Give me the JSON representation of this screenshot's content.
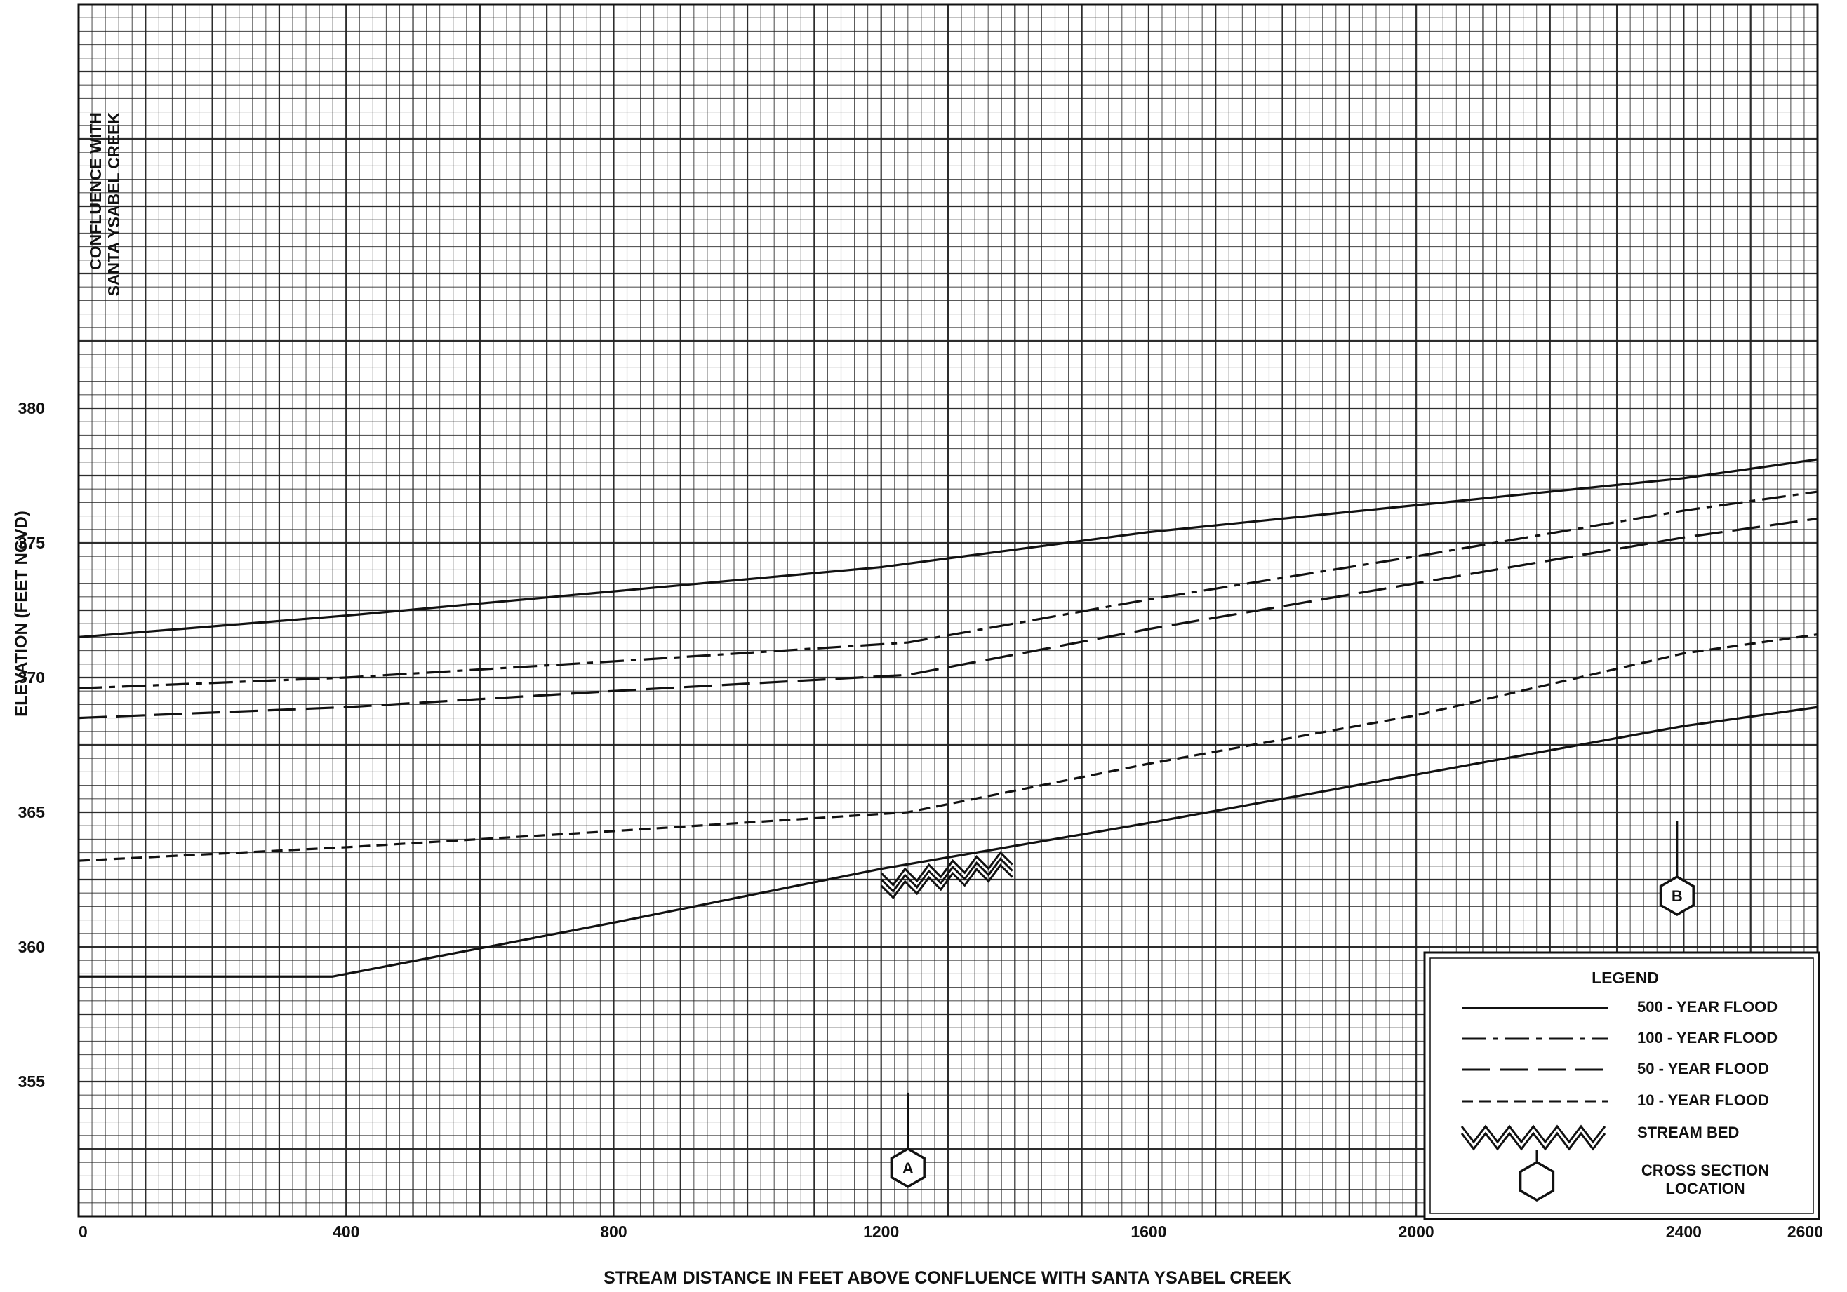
{
  "chart_data": {
    "type": "line",
    "title": "",
    "xlabel": "STREAM DISTANCE IN FEET ABOVE CONFLUENCE WITH SANTA YSABEL CREEK",
    "ylabel": "ELEVATION (FEET NGVD)",
    "xlim": [
      0,
      2600
    ],
    "ylim": [
      350,
      395
    ],
    "x_ticks": [
      0,
      400,
      800,
      1200,
      1600,
      2000,
      2400,
      2600
    ],
    "y_ticks": [
      355,
      360,
      365,
      370,
      375,
      380
    ],
    "grid": true,
    "legend_position": "bottom-right",
    "annotation": {
      "line1": "CONFLUENCE WITH",
      "line2": "SANTA YSABEL CREEK",
      "x": 40
    },
    "series": [
      {
        "name": "500 - YEAR FLOOD",
        "style": "solid",
        "x": [
          0,
          400,
          800,
          1200,
          1600,
          2000,
          2400,
          2600
        ],
        "y": [
          371.5,
          372.3,
          373.2,
          374.1,
          375.4,
          376.4,
          377.4,
          378.1
        ]
      },
      {
        "name": "100 - YEAR FLOOD",
        "style": "long-short-dash",
        "x": [
          0,
          400,
          800,
          1240,
          1600,
          2000,
          2400,
          2600
        ],
        "y": [
          369.6,
          370.0,
          370.6,
          371.3,
          372.9,
          374.5,
          376.2,
          376.9
        ]
      },
      {
        "name": "50 - YEAR FLOOD",
        "style": "long-dash",
        "x": [
          0,
          400,
          800,
          1240,
          1600,
          2000,
          2400,
          2600
        ],
        "y": [
          368.5,
          368.9,
          369.5,
          370.1,
          371.8,
          373.5,
          375.2,
          375.9
        ]
      },
      {
        "name": "10 - YEAR FLOOD",
        "style": "short-dash",
        "x": [
          0,
          400,
          800,
          1240,
          1600,
          2000,
          2400,
          2600
        ],
        "y": [
          363.2,
          363.7,
          364.3,
          365.0,
          366.8,
          368.6,
          370.9,
          371.6
        ]
      },
      {
        "name": "STREAM BED",
        "style": "solid",
        "x": [
          0,
          380,
          800,
          1200,
          1600,
          2000,
          2400,
          2600
        ],
        "y": [
          358.9,
          358.9,
          360.9,
          362.9,
          364.6,
          366.4,
          368.2,
          368.9
        ]
      }
    ],
    "stream_bed_hatch": {
      "x": [
        1200,
        1400
      ]
    },
    "cross_sections": [
      {
        "label": "A",
        "x": 1240,
        "y": 351.8
      },
      {
        "label": "B",
        "x": 2390,
        "y": 361.9
      }
    ],
    "legend": {
      "title": "LEGEND",
      "items": [
        {
          "label": "500 - YEAR FLOOD",
          "style": "solid"
        },
        {
          "label": "100 - YEAR FLOOD",
          "style": "long-short-dash"
        },
        {
          "label": "50 - YEAR FLOOD",
          "style": "long-dash"
        },
        {
          "label": "10 - YEAR FLOOD",
          "style": "short-dash"
        },
        {
          "label": "STREAM BED",
          "style": "hatch"
        },
        {
          "label": "CROSS SECTION",
          "label2": "LOCATION",
          "style": "hexagon"
        }
      ]
    },
    "colors": {
      "ink": "#111111",
      "grid": "#222222",
      "background": "#ffffff"
    }
  }
}
